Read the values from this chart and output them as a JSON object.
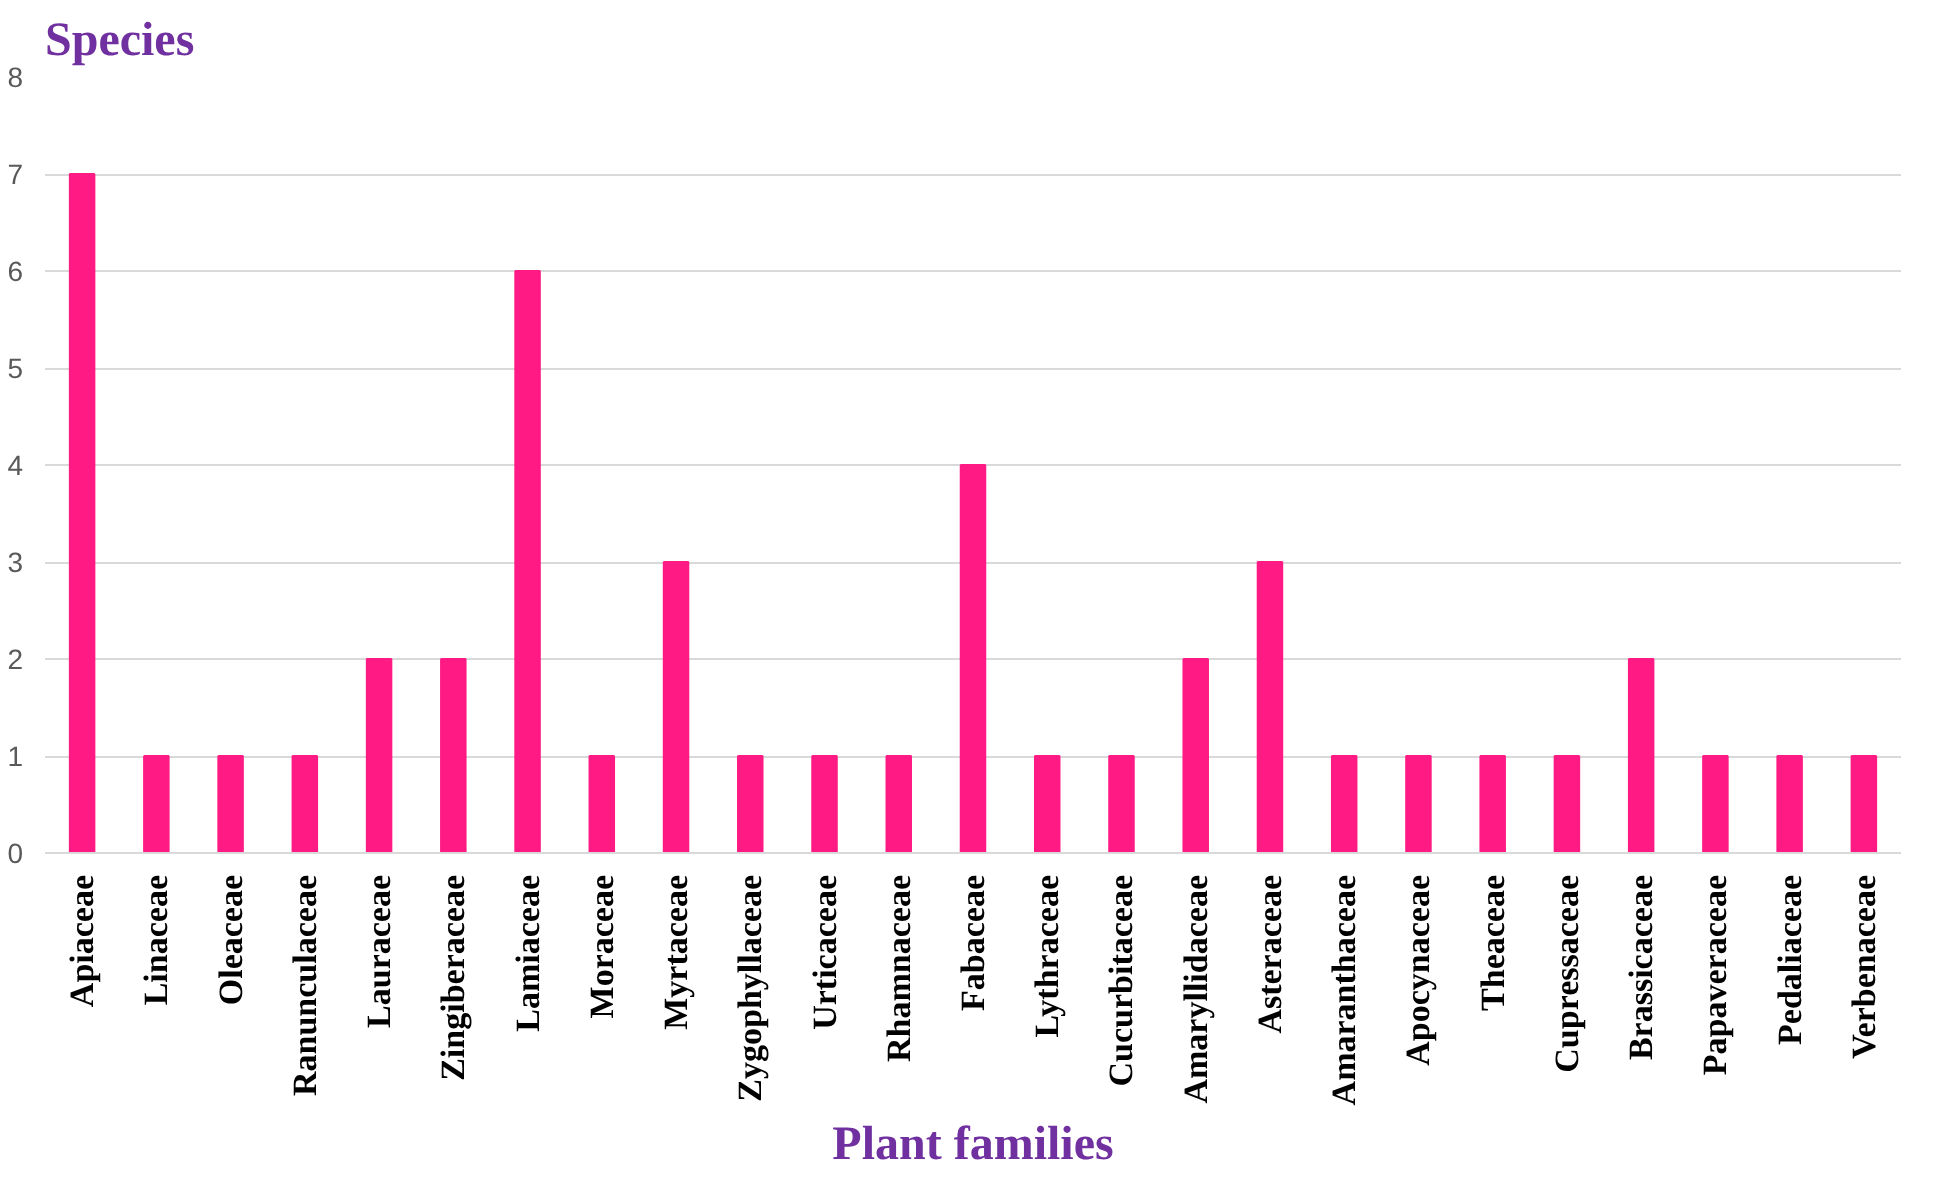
{
  "chart_data": {
    "type": "bar",
    "ylabel": "Species",
    "xlabel": "Plant families",
    "categories": [
      "Apiaceae",
      "Linaceae",
      "Oleaceae",
      "Ranunculaceae",
      "Lauraceae",
      "Zingiberaceae",
      "Lamiaceae",
      "Moraceae",
      "Myrtaceae",
      "Zygophyllaceae",
      "Urticaceae",
      "Rhamnaceae",
      "Fabaceae",
      "Lythraceae",
      "Cucurbitaceae",
      "Amaryllidaceae",
      "Asteraceae",
      "Amaranthaceae",
      "Apocynaceae",
      "Theaceae",
      "Cupressaceae",
      "Brassicaceae",
      "Papaveraceae",
      "Pedaliaceae",
      "Verbenaceae"
    ],
    "values": [
      7,
      1,
      1,
      1,
      2,
      2,
      6,
      1,
      3,
      1,
      1,
      1,
      4,
      1,
      1,
      2,
      3,
      1,
      1,
      1,
      1,
      2,
      1,
      1,
      1
    ],
    "color": "#ff1a84",
    "ylim": [
      0,
      8
    ],
    "yticks": [
      0,
      1,
      2,
      3,
      4,
      5,
      6,
      7,
      8
    ],
    "grid": "y"
  }
}
